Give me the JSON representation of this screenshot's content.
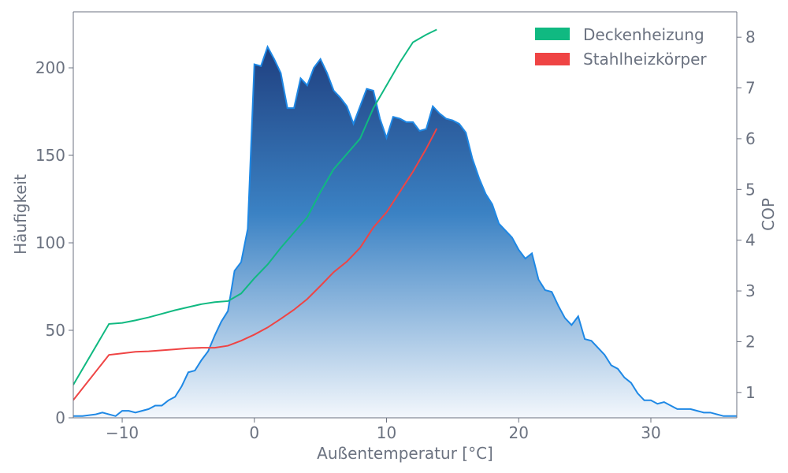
{
  "chart_data": {
    "type": "area+line",
    "title": "",
    "xlabel": "Außentemperatur [°C]",
    "ylabel_left": "Häufigkeit",
    "ylabel_right": "COP",
    "xlim": [
      -13.7,
      36.5
    ],
    "ylim_left": [
      0,
      232
    ],
    "ylim_right": [
      0.5,
      8.5
    ],
    "x_ticks": [
      -10,
      0,
      10,
      20,
      30
    ],
    "x_tick_labels": [
      "−10",
      "0",
      "10",
      "20",
      "30"
    ],
    "y_left_ticks": [
      0,
      50,
      100,
      150,
      200
    ],
    "y_right_ticks": [
      1,
      2,
      3,
      4,
      5,
      6,
      7,
      8
    ],
    "grid": false,
    "legend_position": "top-right",
    "colors": {
      "frequency_line": "#1e88e5",
      "frequency_fill_top": "#1f3f7f",
      "frequency_fill_bottom": "#f3f7fc",
      "deckenheizung": "#10b981",
      "stahlheizkoerper": "#ef4444",
      "axis": "#6b7280"
    },
    "frequency": {
      "name": "Häufigkeit",
      "x": [
        -13.7,
        -13,
        -12,
        -11.5,
        -11,
        -10.5,
        -10,
        -9.5,
        -9,
        -8.5,
        -8,
        -7.5,
        -7,
        -6.5,
        -6,
        -5.5,
        -5,
        -4.5,
        -4,
        -3.5,
        -3,
        -2.5,
        -2,
        -1.5,
        -1,
        -0.5,
        0,
        0.5,
        1,
        1.5,
        2,
        2.5,
        3,
        3.5,
        4,
        4.5,
        5,
        5.5,
        6,
        6.5,
        7,
        7.5,
        8,
        8.5,
        9,
        9.5,
        10,
        10.5,
        11,
        11.5,
        12,
        12.5,
        13,
        13.5,
        14,
        14.5,
        15,
        15.5,
        16,
        16.5,
        17,
        17.5,
        18,
        18.5,
        19,
        19.5,
        20,
        20.5,
        21,
        21.5,
        22,
        22.5,
        23,
        23.5,
        24,
        24.5,
        25,
        25.5,
        26,
        26.5,
        27,
        27.5,
        28,
        28.5,
        29,
        29.5,
        30,
        30.5,
        31,
        31.5,
        32,
        32.5,
        33,
        33.5,
        34,
        34.5,
        35,
        35.5,
        36,
        36.5
      ],
      "y": [
        1,
        1,
        2,
        3,
        2,
        1,
        4,
        4,
        3,
        4,
        5,
        7,
        7,
        10,
        12,
        18,
        26,
        27,
        33,
        38,
        47,
        55,
        61,
        84,
        89,
        108,
        202,
        201,
        212,
        205,
        197,
        177,
        177,
        194,
        190,
        200,
        205,
        197,
        187,
        183,
        178,
        168,
        178,
        188,
        187,
        171,
        160,
        172,
        171,
        169,
        169,
        164,
        165,
        178,
        174,
        171,
        170,
        168,
        163,
        148,
        137,
        128,
        122,
        111,
        107,
        103,
        96,
        91,
        94,
        79,
        73,
        72,
        64,
        57,
        53,
        58,
        45,
        44,
        40,
        36,
        30,
        28,
        23,
        20,
        14,
        10,
        10,
        8,
        9,
        7,
        5,
        5,
        5,
        4,
        3,
        3,
        2,
        1,
        1,
        1
      ]
    },
    "series": [
      {
        "name": "Deckenheizung",
        "x": [
          -13.7,
          -11,
          -10,
          -9,
          -8,
          -7,
          -6,
          -5,
          -4,
          -3,
          -2,
          -1,
          0,
          1,
          2,
          3,
          4,
          5,
          6,
          7,
          8,
          9,
          10,
          11,
          12,
          13,
          13.8
        ],
        "y": [
          1.15,
          2.35,
          2.37,
          2.42,
          2.48,
          2.55,
          2.62,
          2.68,
          2.74,
          2.78,
          2.8,
          2.95,
          3.25,
          3.52,
          3.85,
          4.15,
          4.45,
          4.95,
          5.4,
          5.7,
          6.0,
          6.6,
          7.05,
          7.5,
          7.9,
          8.05,
          8.15
        ]
      },
      {
        "name": "Stahlheizkörper",
        "x": [
          -13.7,
          -11,
          -10,
          -9,
          -8,
          -7,
          -6,
          -5,
          -4,
          -3,
          -2,
          -1,
          0,
          1,
          2,
          3,
          4,
          5,
          6,
          7,
          8,
          9,
          10,
          11,
          12,
          13,
          13.8
        ],
        "y": [
          0.85,
          1.74,
          1.77,
          1.8,
          1.81,
          1.83,
          1.85,
          1.87,
          1.88,
          1.88,
          1.92,
          2.02,
          2.14,
          2.28,
          2.45,
          2.63,
          2.84,
          3.1,
          3.37,
          3.58,
          3.85,
          4.25,
          4.55,
          4.95,
          5.35,
          5.8,
          6.2
        ]
      }
    ]
  }
}
